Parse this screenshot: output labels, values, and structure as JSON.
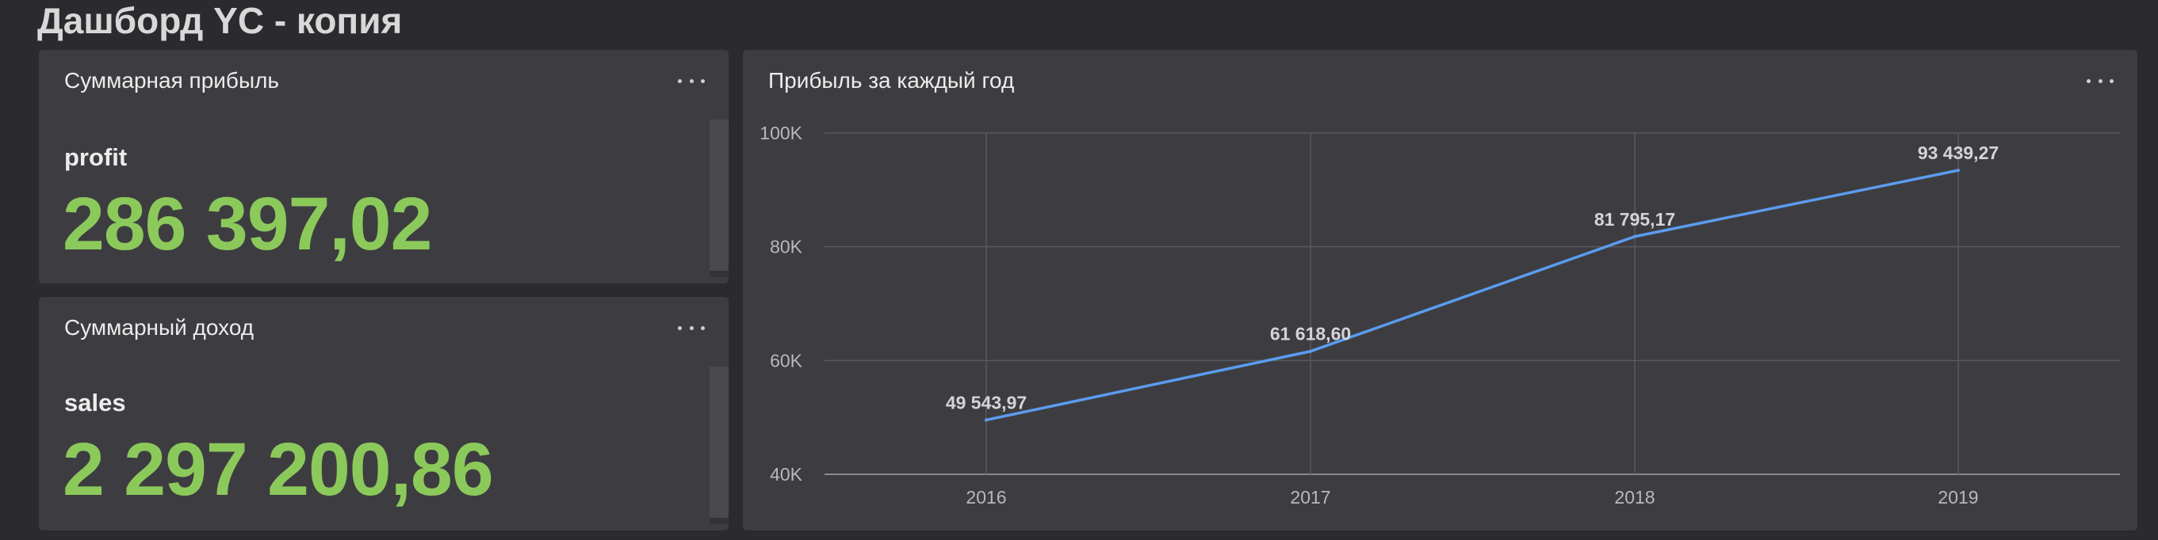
{
  "dashboard": {
    "title": "Дашборд YC - копия"
  },
  "kpi_profit": {
    "title": "Суммарная прибыль",
    "label": "profit",
    "value": "286 397,02"
  },
  "kpi_sales": {
    "title": "Суммарный доход",
    "label": "sales",
    "value": "2 297 200,86"
  },
  "chart_widget": {
    "title": "Прибыль за каждый год"
  },
  "colors": {
    "background": "#2b2b2f",
    "widget": "#3d3d41",
    "kpi_value": "#8cc95b",
    "line": "#5b9cf0"
  },
  "chart_data": {
    "type": "line",
    "title": "Прибыль за каждый год",
    "x": [
      "2016",
      "2017",
      "2018",
      "2019"
    ],
    "series": [
      {
        "values": [
          49543.97,
          61618.6,
          81795.17,
          93439.27
        ],
        "labels": [
          "49 543,97",
          "61 618,60",
          "81 795,17",
          "93 439,27"
        ]
      }
    ],
    "ylim": [
      40000,
      100000
    ],
    "yticks": [
      40000,
      60000,
      80000,
      100000
    ],
    "ytick_labels": [
      "40K",
      "60K",
      "80K",
      "100K"
    ],
    "grid": true
  }
}
